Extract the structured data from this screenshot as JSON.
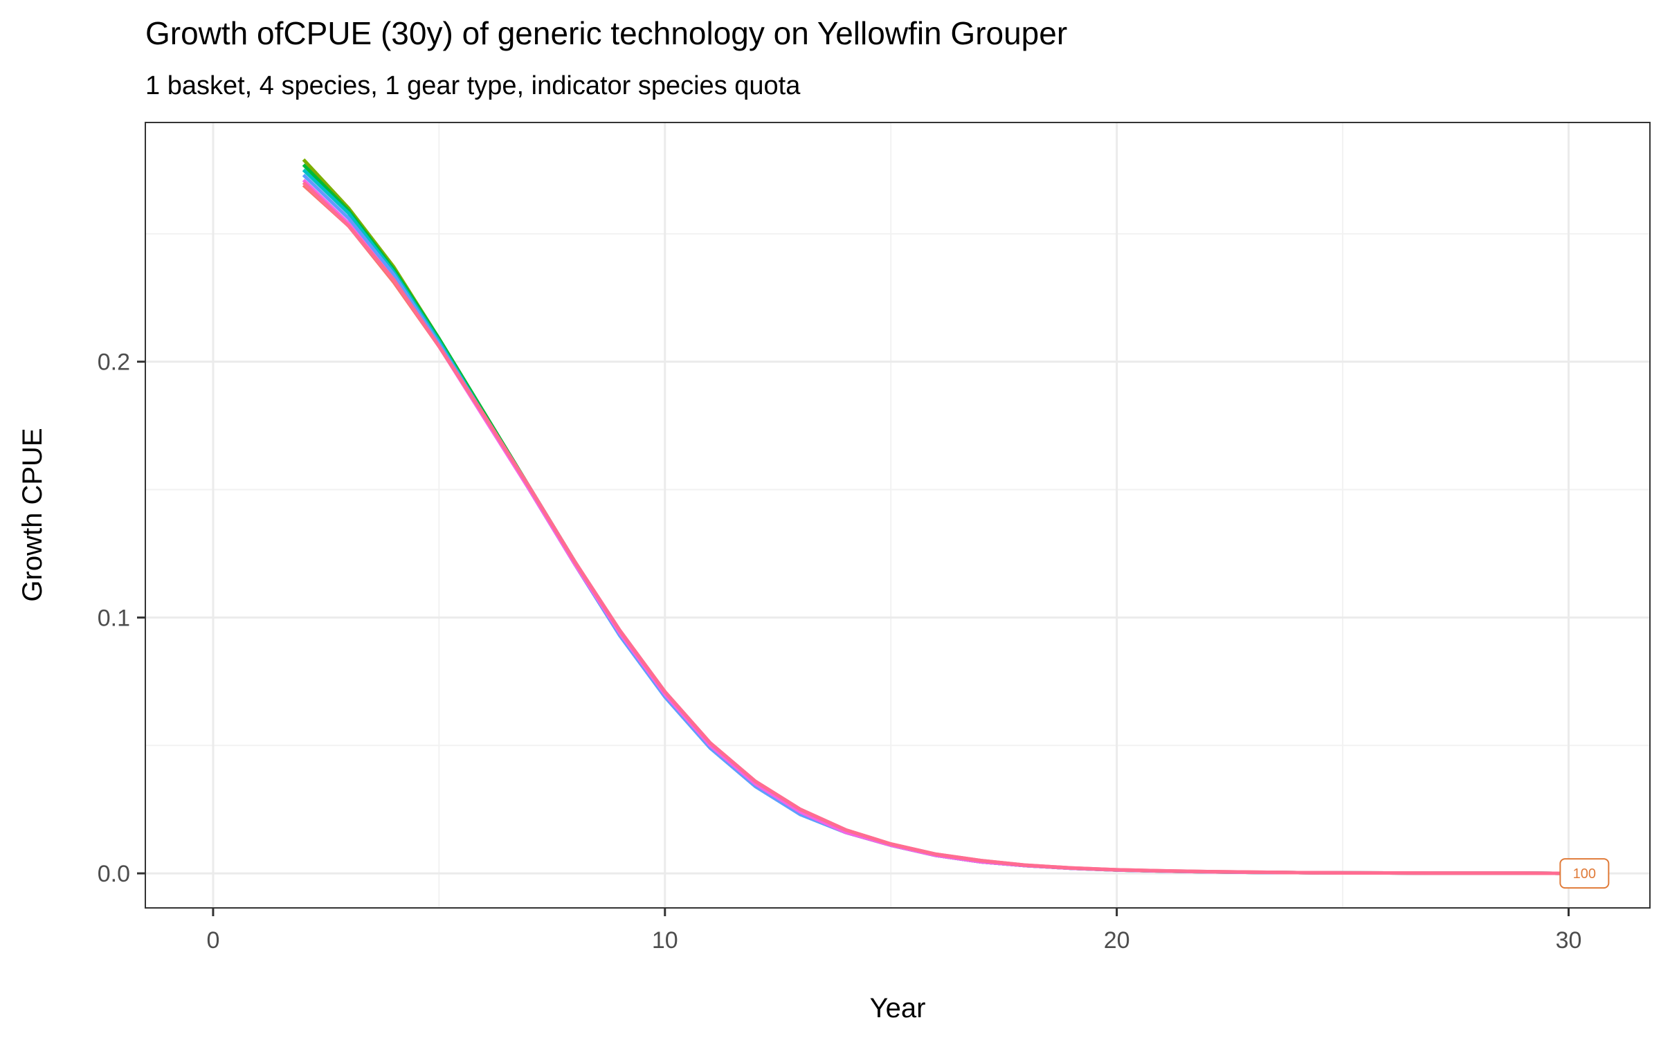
{
  "chart_data": {
    "type": "line",
    "title": "Growth ofCPUE (30y) of generic technology on Yellowfin Grouper",
    "subtitle": "1 basket, 4 species, 1 gear type, indicator species quota",
    "xlabel": "Year",
    "ylabel": "Growth CPUE",
    "xlim": [
      -1.5,
      31.8
    ],
    "ylim": [
      -0.0135,
      0.2935
    ],
    "x_ticks": [
      0,
      10,
      20,
      30
    ],
    "x_tick_labels": [
      "0",
      "10",
      "20",
      "30"
    ],
    "y_ticks": [
      0.0,
      0.1,
      0.2
    ],
    "y_tick_labels": [
      "0.0",
      "0.1",
      "0.2"
    ],
    "grid": true,
    "legend": "none",
    "x": [
      2,
      3,
      4,
      5,
      6,
      7,
      8,
      9,
      10,
      11,
      12,
      13,
      14,
      15,
      16,
      17,
      18,
      19,
      20,
      21,
      22,
      23,
      24,
      25,
      26,
      27,
      28,
      29,
      30
    ],
    "series": [
      {
        "color": "#7CAE00",
        "values": [
          0.279,
          0.26,
          0.237,
          0.209,
          0.18,
          0.151,
          0.122,
          0.094,
          0.07,
          0.05,
          0.035,
          0.024,
          0.016,
          0.011,
          0.007,
          0.0045,
          0.003,
          0.002,
          0.0013,
          0.0009,
          0.0006,
          0.0004,
          0.0003,
          0.0002,
          0.00015,
          0.0001,
          0.0001,
          0.0001,
          0.0
        ]
      },
      {
        "color": "#00BA38",
        "values": [
          0.277,
          0.259,
          0.236,
          0.209,
          0.18,
          0.151,
          0.122,
          0.094,
          0.07,
          0.05,
          0.035,
          0.024,
          0.016,
          0.011,
          0.007,
          0.0045,
          0.003,
          0.002,
          0.0013,
          0.0009,
          0.0006,
          0.0004,
          0.0003,
          0.0002,
          0.00015,
          0.0001,
          0.0001,
          0.0001,
          0.0
        ]
      },
      {
        "color": "#00BFC4",
        "values": [
          0.275,
          0.258,
          0.235,
          0.208,
          0.179,
          0.15,
          0.121,
          0.093,
          0.069,
          0.049,
          0.034,
          0.023,
          0.016,
          0.011,
          0.007,
          0.0045,
          0.003,
          0.002,
          0.0013,
          0.0009,
          0.0006,
          0.0004,
          0.0003,
          0.0002,
          0.00015,
          0.0001,
          0.0001,
          0.0001,
          0.0
        ]
      },
      {
        "color": "#619CFF",
        "values": [
          0.273,
          0.256,
          0.234,
          0.207,
          0.179,
          0.15,
          0.121,
          0.093,
          0.069,
          0.049,
          0.034,
          0.023,
          0.016,
          0.011,
          0.007,
          0.0045,
          0.003,
          0.002,
          0.0013,
          0.0009,
          0.0006,
          0.0004,
          0.0003,
          0.0002,
          0.00015,
          0.0001,
          0.0001,
          0.0001,
          0.0
        ]
      },
      {
        "color": "#F564E3",
        "values": [
          0.271,
          0.254,
          0.232,
          0.206,
          0.178,
          0.15,
          0.121,
          0.094,
          0.07,
          0.05,
          0.035,
          0.024,
          0.016,
          0.011,
          0.007,
          0.0045,
          0.003,
          0.002,
          0.0013,
          0.0009,
          0.0006,
          0.0004,
          0.0003,
          0.0002,
          0.00015,
          0.0001,
          0.0001,
          0.0001,
          0.0
        ]
      },
      {
        "color": "#F8766D",
        "values": [
          0.269,
          0.253,
          0.231,
          0.206,
          0.179,
          0.151,
          0.122,
          0.095,
          0.071,
          0.051,
          0.036,
          0.025,
          0.017,
          0.0115,
          0.0075,
          0.005,
          0.0032,
          0.0021,
          0.0014,
          0.001,
          0.0007,
          0.0005,
          0.0003,
          0.0002,
          0.00015,
          0.0001,
          0.0001,
          0.0001,
          0.0
        ]
      },
      {
        "color": "#FF6C91",
        "values": [
          0.27,
          0.253,
          0.232,
          0.206,
          0.179,
          0.151,
          0.122,
          0.095,
          0.071,
          0.051,
          0.036,
          0.025,
          0.017,
          0.0115,
          0.0075,
          0.005,
          0.0032,
          0.0021,
          0.0014,
          0.001,
          0.0007,
          0.0005,
          0.0003,
          0.0002,
          0.00015,
          0.0001,
          0.0001,
          0.0001,
          0.0
        ]
      }
    ],
    "annotations": [
      {
        "text": "100",
        "x": 30.35,
        "y": 0.0,
        "color": "#E07B39"
      }
    ]
  }
}
